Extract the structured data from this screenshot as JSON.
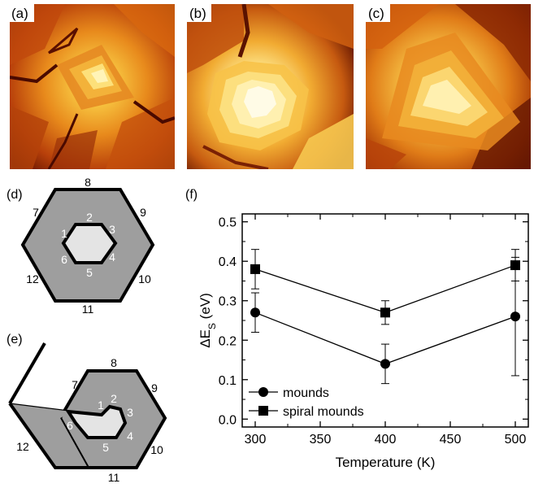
{
  "panel_labels": {
    "a": "(a)",
    "b": "(b)",
    "c": "(c)",
    "d": "(d)",
    "e": "(e)",
    "f": "(f)"
  },
  "colors": {
    "terrace_dark": "#5a0f00",
    "terrace_mid": "#d4620a",
    "terrace_light": "#fff2a8",
    "hex_fill": "#9e9e9e",
    "inner_fill": "#e4e4e4",
    "outline": "#000000"
  },
  "diagram_d": {
    "outer_edges": [
      "7",
      "8",
      "9",
      "10",
      "11",
      "12"
    ],
    "inner_edges": [
      "1",
      "2",
      "3",
      "4",
      "5",
      "6"
    ]
  },
  "diagram_e": {
    "outer_edges": [
      "7",
      "8",
      "9",
      "10",
      "11",
      "12"
    ],
    "inner_edges": [
      "1",
      "2",
      "3",
      "4",
      "5",
      "6"
    ]
  },
  "chart_data": {
    "type": "scatter",
    "x": [
      300,
      400,
      500
    ],
    "series": [
      {
        "name": "mounds",
        "marker": "circle",
        "values": [
          0.27,
          0.14,
          0.26
        ],
        "err_low": [
          0.22,
          0.09,
          0.11
        ],
        "err_high": [
          0.32,
          0.19,
          0.41
        ]
      },
      {
        "name": "spiral mounds",
        "marker": "square",
        "values": [
          0.38,
          0.27,
          0.39
        ],
        "err_low": [
          0.33,
          0.24,
          0.35
        ],
        "err_high": [
          0.43,
          0.3,
          0.43
        ]
      }
    ],
    "xlabel": "Temperature (K)",
    "ylabel": "ΔE",
    "ylabel_sub": "S",
    "ylabel_unit": "(eV)",
    "xlim": [
      290,
      510
    ],
    "ylim": [
      -0.02,
      0.52
    ],
    "xticks": [
      300,
      350,
      400,
      450,
      500
    ],
    "yticks": [
      0.0,
      0.1,
      0.2,
      0.3,
      0.4,
      0.5
    ],
    "xtick_labels": [
      "300",
      "350",
      "400",
      "450",
      "500"
    ],
    "ytick_labels": [
      "0.0",
      "0.1",
      "0.2",
      "0.3",
      "0.4",
      "0.5"
    ],
    "legend_position": "bottom-left",
    "grid": false
  }
}
